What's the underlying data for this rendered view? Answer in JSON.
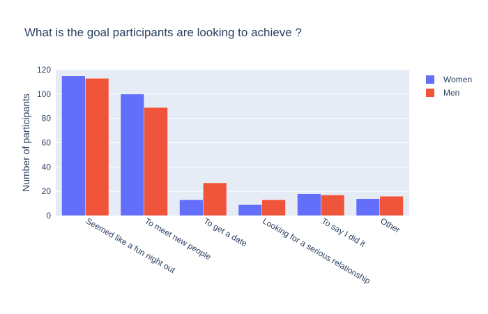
{
  "chart_data": {
    "type": "bar",
    "title": "What is the goal participants are looking to achieve ?",
    "xlabel": "",
    "ylabel": "Number of participants",
    "categories": [
      "Seemed like a fun night out",
      "To meet new people",
      "To get a date",
      "Looking for a serious relationship",
      "To say I did it",
      "Other"
    ],
    "series": [
      {
        "name": "Women",
        "color": "#636efa",
        "values": [
          115,
          100,
          13,
          9,
          18,
          14
        ]
      },
      {
        "name": "Men",
        "color": "#ef553b",
        "values": [
          113,
          89,
          27,
          13,
          17,
          16
        ]
      }
    ],
    "ylim": [
      0,
      120
    ],
    "yticks": [
      0,
      20,
      40,
      60,
      80,
      100,
      120
    ],
    "grid": true,
    "legend": "top-right",
    "plot_background": "#e5ecf6",
    "text_color": "#2a3f5f"
  }
}
